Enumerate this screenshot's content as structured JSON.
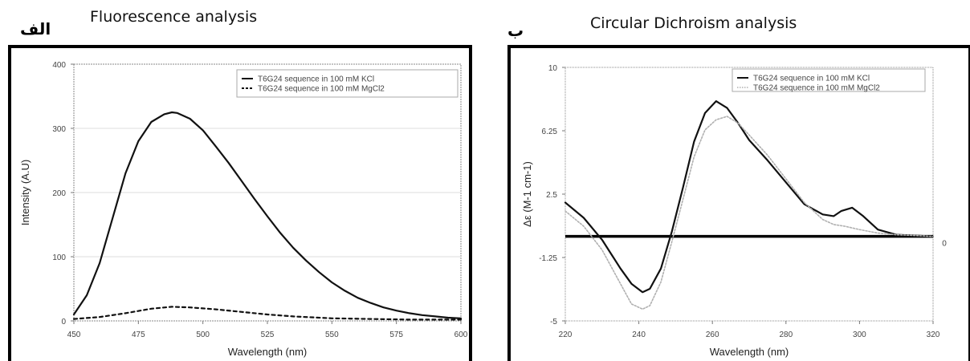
{
  "panel_a": {
    "letter": "الف",
    "title": "Fluorescence analysis"
  },
  "panel_b": {
    "letter": "ب",
    "title": "Circular Dichroism analysis"
  },
  "chart_data": [
    {
      "type": "line",
      "xlabel": "Wavelength (nm)",
      "ylabel": "Intensity (A.U)",
      "xlim": [
        450,
        600
      ],
      "ylim": [
        0,
        400
      ],
      "xticks": [
        "450",
        "475",
        "500",
        "525",
        "550",
        "575",
        "600"
      ],
      "yticks": [
        "0",
        "100",
        "200",
        "300",
        "400"
      ],
      "legend_position": "top-right",
      "series": [
        {
          "name": "T6G24 sequence in 100 mM KCl",
          "style": "solid",
          "color": "#111111",
          "x": [
            450,
            455,
            460,
            465,
            470,
            475,
            480,
            485,
            488,
            490,
            495,
            500,
            505,
            510,
            515,
            520,
            525,
            530,
            535,
            540,
            545,
            550,
            555,
            560,
            565,
            570,
            575,
            580,
            585,
            590,
            595,
            600
          ],
          "y": [
            10,
            40,
            90,
            160,
            230,
            280,
            310,
            322,
            325,
            324,
            315,
            297,
            272,
            246,
            218,
            190,
            163,
            137,
            114,
            94,
            76,
            60,
            47,
            36,
            28,
            21,
            16,
            12,
            9,
            7,
            5,
            4
          ]
        },
        {
          "name": "T6G24 sequence in 100 mM MgCl2",
          "style": "dashed",
          "color": "#111111",
          "x": [
            450,
            460,
            470,
            480,
            488,
            495,
            505,
            515,
            525,
            535,
            550,
            565,
            580,
            600
          ],
          "y": [
            3,
            6,
            12,
            19,
            22,
            21,
            18,
            14,
            10,
            7,
            4,
            3,
            2,
            2
          ]
        }
      ]
    },
    {
      "type": "line",
      "xlabel": "Wavelength (nm)",
      "ylabel": "Δε (M-1 cm-1)",
      "xlim": [
        220,
        320
      ],
      "ylim": [
        -5,
        10
      ],
      "xticks": [
        "220",
        "240",
        "260",
        "280",
        "300",
        "320"
      ],
      "yticks": [
        "-5",
        "-1.25",
        "2.5",
        "6.25",
        "10"
      ],
      "right_tick": "0",
      "legend_position": "top-right",
      "series": [
        {
          "name": "T6G24 sequence in 100 mM KCl",
          "style": "solid",
          "color": "#111111",
          "x": [
            220,
            225,
            230,
            235,
            238,
            241,
            243,
            246,
            249,
            252,
            255,
            258,
            261,
            264,
            267,
            270,
            275,
            280,
            285,
            290,
            293,
            295,
            298,
            301,
            305,
            310,
            315,
            320
          ],
          "y": [
            2.0,
            1.1,
            -0.2,
            -1.9,
            -2.8,
            -3.3,
            -3.1,
            -1.9,
            0.3,
            2.9,
            5.6,
            7.3,
            8.0,
            7.6,
            6.7,
            5.7,
            4.5,
            3.2,
            1.9,
            1.3,
            1.2,
            1.5,
            1.7,
            1.2,
            0.4,
            0.1,
            0.05,
            0.0
          ]
        },
        {
          "name": "T6G24 sequence in 100 mM MgCl2",
          "style": "dotted",
          "color": "#b0b0b0",
          "x": [
            220,
            225,
            230,
            235,
            238,
            241,
            243,
            246,
            249,
            252,
            255,
            258,
            261,
            264,
            267,
            270,
            275,
            280,
            285,
            290,
            293,
            296,
            300,
            305,
            310,
            315,
            320
          ],
          "y": [
            1.5,
            0.6,
            -0.8,
            -2.8,
            -4.0,
            -4.3,
            -4.1,
            -2.7,
            -0.3,
            2.2,
            4.7,
            6.3,
            6.9,
            7.1,
            6.7,
            6.0,
            4.8,
            3.4,
            2.0,
            1.0,
            0.7,
            0.6,
            0.4,
            0.2,
            0.1,
            0.05,
            0.0
          ]
        }
      ]
    }
  ]
}
